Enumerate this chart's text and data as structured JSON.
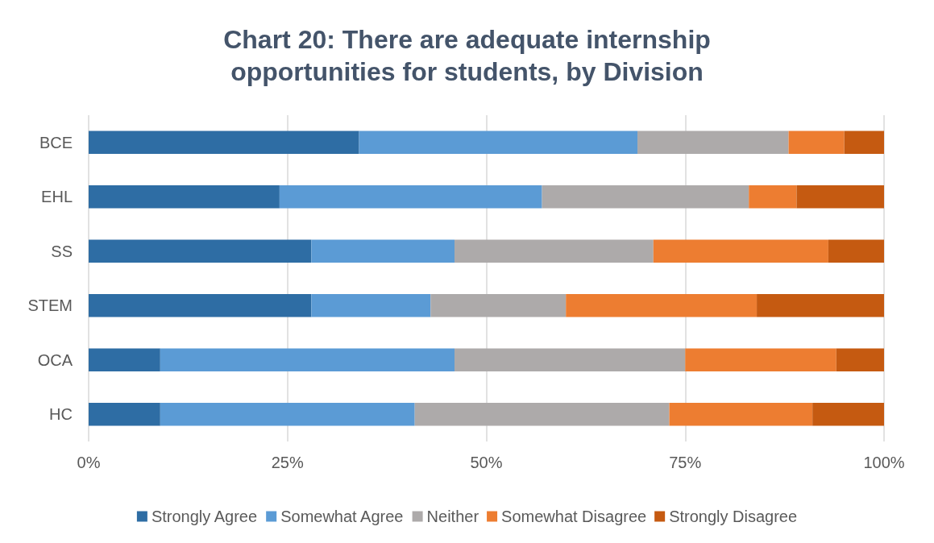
{
  "chart_data": {
    "type": "bar",
    "orientation": "horizontal",
    "stacked": true,
    "title": "Chart 20: There are adequate internship\nopportunities for students, by Division",
    "categories": [
      "BCE",
      "EHL",
      "SS",
      "STEM",
      "OCA",
      "HC"
    ],
    "series": [
      {
        "name": "Strongly Agree",
        "color": "#2e6da4",
        "values": [
          34,
          24,
          28,
          28,
          9,
          9
        ]
      },
      {
        "name": "Somewhat Agree",
        "color": "#5b9bd5",
        "values": [
          35,
          33,
          18,
          15,
          37,
          32
        ]
      },
      {
        "name": "Neither",
        "color": "#adaaaa",
        "values": [
          19,
          26,
          25,
          17,
          29,
          32
        ]
      },
      {
        "name": "Somewhat Disagree",
        "color": "#ed7d31",
        "values": [
          7,
          6,
          22,
          24,
          19,
          18
        ]
      },
      {
        "name": "Strongly Disagree",
        "color": "#c55a11",
        "values": [
          5,
          11,
          7,
          16,
          6,
          9
        ]
      }
    ],
    "xlim": [
      0,
      100
    ],
    "xticks": [
      {
        "value": 0,
        "label": "0%"
      },
      {
        "value": 25,
        "label": "25%"
      },
      {
        "value": 50,
        "label": "50%"
      },
      {
        "value": 75,
        "label": "75%"
      },
      {
        "value": 100,
        "label": "100%"
      }
    ],
    "grid": "x",
    "legend": "bottom"
  }
}
